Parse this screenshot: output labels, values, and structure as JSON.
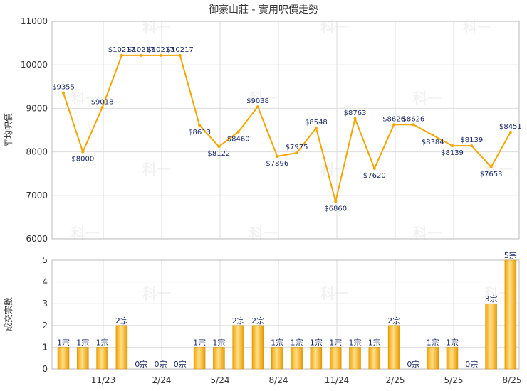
{
  "chart_data": [
    {
      "type": "line",
      "title": "御豪山莊 - 實用呎價走勢",
      "ylabel": "平均呎價",
      "ylim": [
        6000,
        11000
      ],
      "y_ticks": [
        6000,
        7000,
        8000,
        9000,
        10000,
        11000
      ],
      "color": "#f5a500",
      "grid": true,
      "values": [
        9355,
        8000,
        9018,
        10217,
        10217,
        10217,
        10217,
        8613,
        8122,
        8460,
        9038,
        7896,
        7975,
        8548,
        6860,
        8763,
        7620,
        8626,
        8626,
        8384,
        8139,
        8139,
        7653,
        8451
      ],
      "labels": [
        "$9355",
        "$8000",
        "$9018",
        "$10217",
        "$10217",
        "$10217",
        "$10217",
        "$8613",
        "$8122",
        "$8460",
        "$9038",
        "$7896",
        "$7975",
        "$8548",
        "$6860",
        "$8763",
        "$7620",
        "$8626",
        "$8626",
        "$8384",
        "$8139",
        "$8139",
        "$7653",
        "$8451"
      ]
    },
    {
      "type": "bar",
      "ylabel": "成交宗數",
      "ylim": [
        0,
        5
      ],
      "y_ticks": [
        0,
        1,
        2,
        3,
        4,
        5
      ],
      "color": "#f5a500",
      "grid": true,
      "x_tick_labels": [
        "11/23",
        "2/24",
        "5/24",
        "8/24",
        "11/24",
        "2/25",
        "5/25",
        "8/25"
      ],
      "values": [
        1,
        1,
        1,
        2,
        0,
        0,
        0,
        1,
        1,
        2,
        2,
        1,
        1,
        1,
        1,
        1,
        1,
        2,
        0,
        1,
        1,
        0,
        3,
        5
      ],
      "labels": [
        "1宗",
        "1宗",
        "1宗",
        "2宗",
        "0宗",
        "0宗",
        "0宗",
        "1宗",
        "1宗",
        "2宗",
        "2宗",
        "1宗",
        "1宗",
        "1宗",
        "1宗",
        "1宗",
        "1宗",
        "2宗",
        "0宗",
        "1宗",
        "1宗",
        "0宗",
        "3宗",
        "5宗"
      ]
    }
  ],
  "watermark": "科一"
}
